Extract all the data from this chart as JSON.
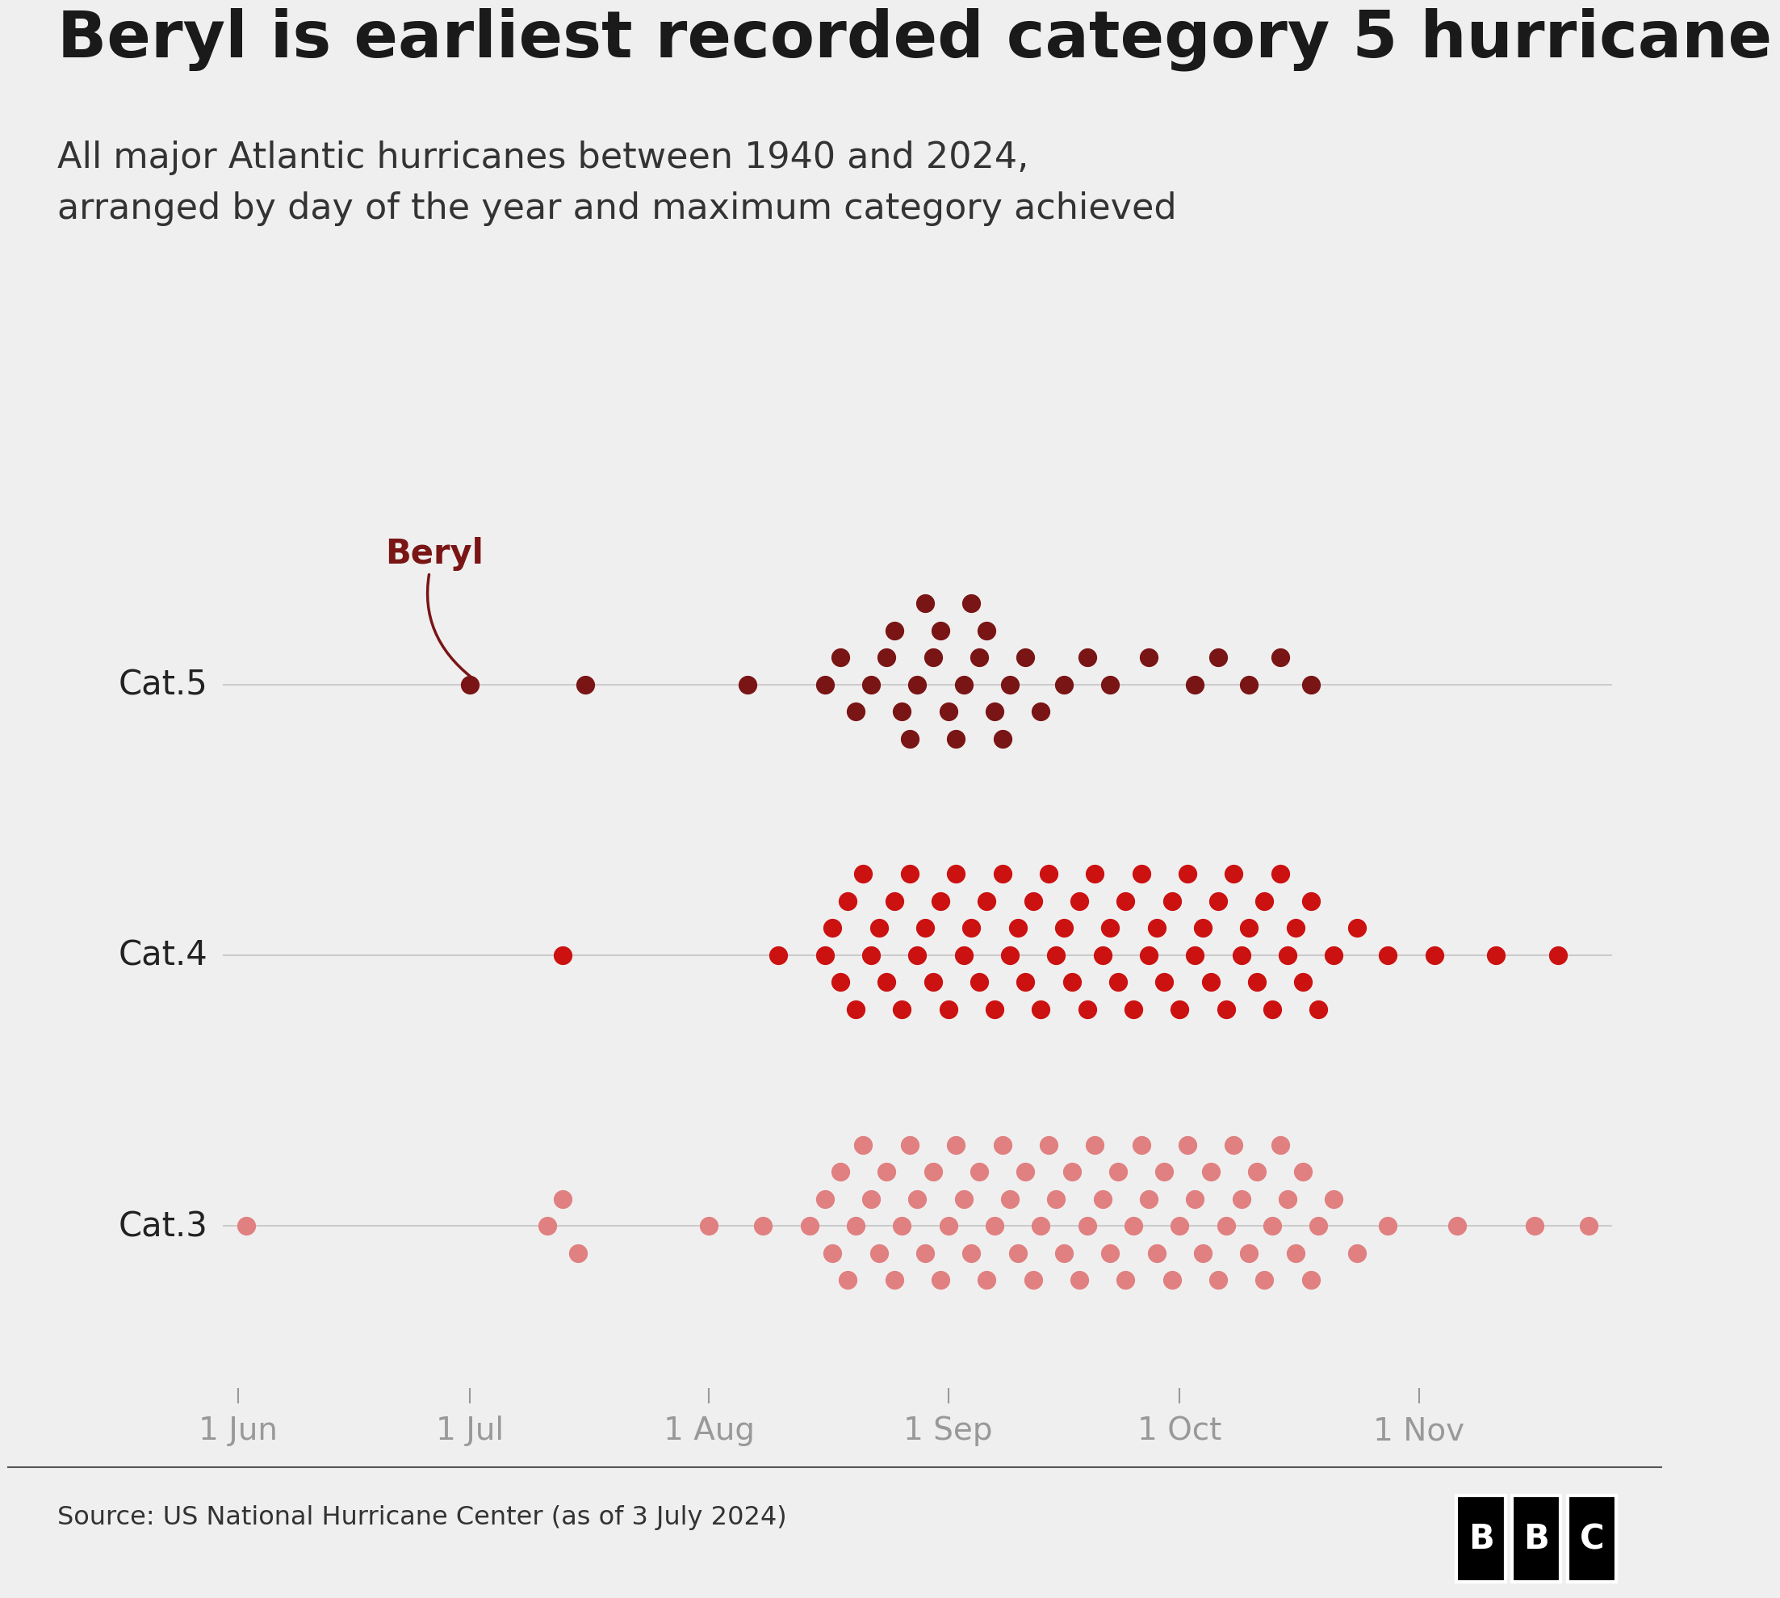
{
  "title": "Beryl is earliest recorded category 5 hurricane",
  "subtitle": "All major Atlantic hurricanes between 1940 and 2024,\narranged by day of the year and maximum category achieved",
  "source": "Source: US National Hurricane Center (as of 3 July 2024)",
  "background_color": "#f0eff0",
  "title_color": "#1a1a1a",
  "subtitle_color": "#333333",
  "cat5_color": "#7a1515",
  "cat4_color": "#cc1111",
  "cat3_color": "#e08080",
  "beryl_color": "#7a1515",
  "axis_line_color": "#cccccc",
  "tick_color": "#999999",
  "source_color": "#333333",
  "x_min": 150,
  "x_max": 330,
  "tick_days": [
    152,
    182,
    213,
    244,
    274,
    305
  ],
  "tick_labels": [
    "1 Jun",
    "1 Jul",
    "1 Aug",
    "1 Sep",
    "1 Oct",
    "1 Nov"
  ],
  "beryl_day": 182,
  "cat5_days": [
    182,
    197,
    218,
    228,
    230,
    232,
    234,
    236,
    237,
    238,
    239,
    240,
    241,
    242,
    243,
    244,
    245,
    246,
    247,
    248,
    249,
    250,
    251,
    252,
    254,
    256,
    259,
    262,
    265,
    270,
    276,
    279,
    283,
    287,
    291
  ],
  "cat4_days": [
    194,
    222,
    228,
    229,
    230,
    231,
    232,
    233,
    234,
    235,
    236,
    237,
    238,
    239,
    240,
    241,
    242,
    243,
    244,
    245,
    246,
    247,
    248,
    249,
    250,
    251,
    252,
    253,
    254,
    255,
    256,
    257,
    258,
    259,
    260,
    261,
    262,
    263,
    264,
    265,
    266,
    267,
    268,
    269,
    270,
    271,
    272,
    273,
    274,
    275,
    276,
    277,
    278,
    279,
    280,
    281,
    282,
    283,
    284,
    285,
    286,
    287,
    288,
    289,
    290,
    291,
    292,
    294,
    297,
    301,
    307,
    315,
    323
  ],
  "cat3_days": [
    153,
    192,
    194,
    196,
    213,
    220,
    226,
    228,
    229,
    230,
    231,
    232,
    233,
    234,
    235,
    236,
    237,
    238,
    239,
    240,
    241,
    242,
    243,
    244,
    245,
    246,
    247,
    248,
    249,
    250,
    251,
    252,
    253,
    254,
    255,
    256,
    257,
    258,
    259,
    260,
    261,
    262,
    263,
    264,
    265,
    266,
    267,
    268,
    269,
    270,
    271,
    272,
    273,
    274,
    275,
    276,
    277,
    278,
    279,
    280,
    281,
    282,
    283,
    284,
    285,
    286,
    287,
    288,
    289,
    290,
    291,
    292,
    294,
    297,
    301,
    310,
    320,
    327
  ]
}
